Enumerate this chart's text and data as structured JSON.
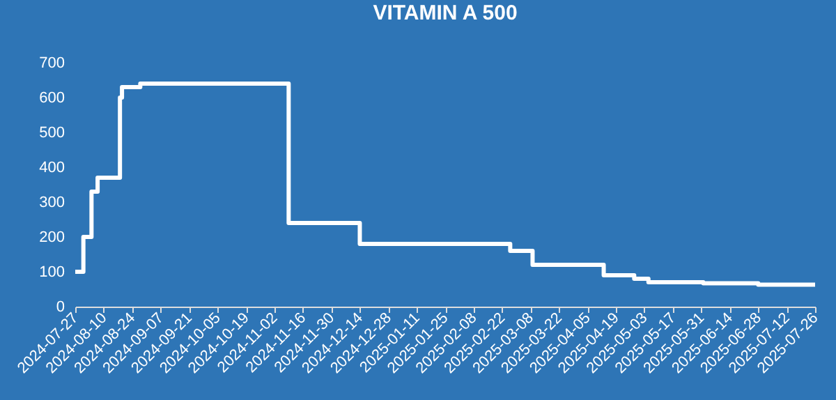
{
  "chart_data": {
    "type": "step",
    "title": "VITAMIN A 500",
    "x": [
      "2024-07-27",
      "2024-07-31",
      "2024-08-04",
      "2024-08-07",
      "2024-08-18",
      "2024-08-19",
      "2024-08-28",
      "2024-11-09",
      "2024-12-14",
      "2025-02-26",
      "2025-03-09",
      "2025-04-13",
      "2025-04-28",
      "2025-05-05",
      "2025-06-01",
      "2025-06-28",
      "2025-07-26"
    ],
    "series": [
      {
        "color": "#ffffff",
        "values": [
          100,
          200,
          330,
          370,
          600,
          630,
          640,
          240,
          180,
          160,
          120,
          90,
          80,
          70,
          67,
          63,
          63
        ]
      }
    ],
    "xlim": [
      "2024-07-27",
      "2025-07-26"
    ],
    "xticks": [
      "2024-07-27",
      "2024-08-10",
      "2024-08-24",
      "2024-09-07",
      "2024-09-21",
      "2024-10-05",
      "2024-10-19",
      "2024-11-02",
      "2024-11-16",
      "2024-11-30",
      "2024-12-14",
      "2024-12-28",
      "2025-01-11",
      "2025-01-25",
      "2025-02-08",
      "2025-02-22",
      "2025-03-08",
      "2025-03-22",
      "2025-04-05",
      "2025-04-19",
      "2025-05-03",
      "2025-05-17",
      "2025-05-31",
      "2025-06-14",
      "2025-06-28",
      "2025-07-12",
      "2025-07-26"
    ],
    "ylim": [
      0,
      700
    ],
    "yticks": [
      0,
      100,
      200,
      300,
      400,
      500,
      600,
      700
    ],
    "grid": false
  }
}
